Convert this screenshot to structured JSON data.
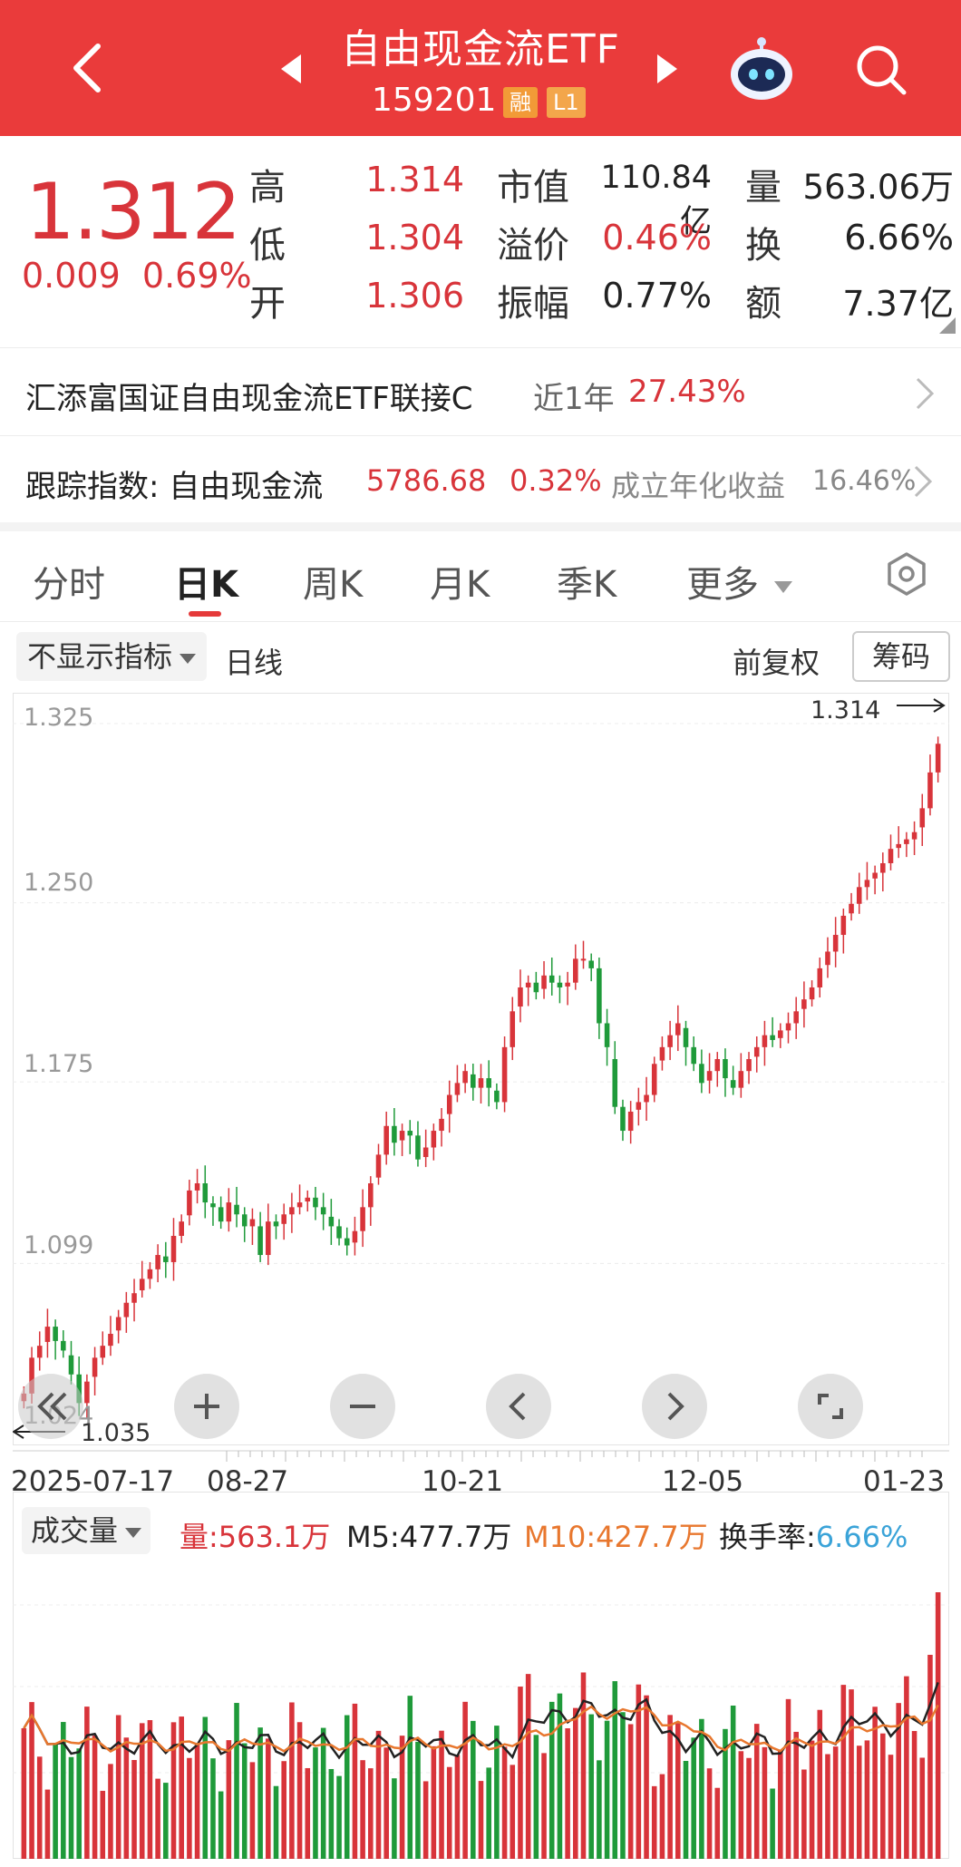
{
  "header": {
    "title": "自由现金流ETF",
    "code": "159201",
    "badge_margin": "融",
    "badge_level": "L1"
  },
  "quote": {
    "price": "1.312",
    "change_abs": "0.009",
    "change_pct": "0.69%",
    "high_label": "高",
    "high": "1.314",
    "low_label": "低",
    "low": "1.304",
    "open_label": "开",
    "open": "1.306",
    "mcap_label": "市值",
    "mcap": "110.84亿",
    "premium_label": "溢价",
    "premium": "0.46%",
    "amplitude_label": "振幅",
    "amplitude": "0.77%",
    "volume_label": "量",
    "volume": "563.06万",
    "turnover_label": "换",
    "turnover": "6.66%",
    "amount_label": "额",
    "amount": "7.37亿"
  },
  "fund_link": {
    "name": "汇添富国证自由现金流ETF联接C",
    "period_label": "近1年",
    "period_return": "27.43%"
  },
  "index_row": {
    "label": "跟踪指数: 自由现金流",
    "value": "5786.68",
    "change": "0.32%",
    "annual_label": "成立年化收益",
    "annual": "16.46%"
  },
  "tabs": [
    "分时",
    "日K",
    "周K",
    "月K",
    "季K",
    "更多"
  ],
  "active_tab": 1,
  "toolbar": {
    "indicator_select": "不显示指标",
    "period": "日线",
    "adjust": "前复权",
    "chips_button": "筹码"
  },
  "kline": {
    "y_ticks": [
      "1.325",
      "1.250",
      "1.175",
      "1.099",
      "1.024"
    ],
    "x_ticks": [
      "2025-07-17",
      "08-27",
      "10-21",
      "12-05",
      "01-23"
    ],
    "max_label": "1.314",
    "min_label": "1.035"
  },
  "volume_panel": {
    "select_label": "成交量",
    "vol_label": "量:563.1万",
    "m5_label": "M5:477.7万",
    "m10_label": "M10:427.7万",
    "turnover_label": "换手率:",
    "turnover_value": "6.66%"
  },
  "colors": {
    "up": "#d8343a",
    "down": "#1f9a3a",
    "header": "#ea3b3b",
    "m5": "#222222",
    "m10": "#e8772e",
    "turnover": "#3aa3d8"
  },
  "chart_data": {
    "type": "candlestick",
    "title": "",
    "x_range": [
      "2025-07-17",
      "2026-01-23"
    ],
    "ylim": [
      1.024,
      1.325
    ],
    "closes": [
      1.04,
      1.055,
      1.06,
      1.068,
      1.062,
      1.058,
      1.048,
      1.036,
      1.045,
      1.055,
      1.06,
      1.065,
      1.072,
      1.078,
      1.082,
      1.088,
      1.092,
      1.098,
      1.095,
      1.106,
      1.112,
      1.125,
      1.128,
      1.12,
      1.118,
      1.112,
      1.12,
      1.115,
      1.11,
      1.113,
      1.098,
      1.112,
      1.11,
      1.115,
      1.118,
      1.12,
      1.122,
      1.118,
      1.115,
      1.11,
      1.105,
      1.102,
      1.108,
      1.118,
      1.128,
      1.14,
      1.152,
      1.145,
      1.15,
      1.148,
      1.138,
      1.143,
      1.15,
      1.155,
      1.165,
      1.17,
      1.175,
      1.168,
      1.172,
      1.168,
      1.162,
      1.185,
      1.2,
      1.21,
      1.212,
      1.208,
      1.215,
      1.212,
      1.21,
      1.212,
      1.222,
      1.222,
      1.218,
      1.195,
      1.185,
      1.16,
      1.15,
      1.158,
      1.162,
      1.165,
      1.178,
      1.185,
      1.19,
      1.195,
      1.185,
      1.178,
      1.17,
      1.175,
      1.18,
      1.172,
      1.168,
      1.175,
      1.18,
      1.185,
      1.19,
      1.188,
      1.192,
      1.195,
      1.2,
      1.205,
      1.21,
      1.218,
      1.225,
      1.232,
      1.24,
      1.245,
      1.252,
      1.255,
      1.258,
      1.262,
      1.268,
      1.27,
      1.272,
      1.275,
      1.285,
      1.3,
      1.312
    ],
    "volume_series": {
      "volume": "563.1万",
      "M5": "477.7万",
      "M10": "427.7万"
    }
  }
}
